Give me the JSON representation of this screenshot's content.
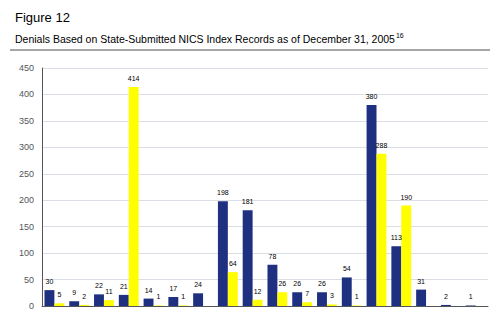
{
  "chart_data": {
    "type": "bar",
    "title": "Figure 12",
    "subtitle": "Denials Based on State-Submitted NICS Index Records as of December 31, 2005",
    "annotations": [
      "16"
    ],
    "categories": [
      null,
      null,
      null,
      null,
      null,
      null,
      null,
      null,
      null,
      null,
      null,
      null,
      null,
      null,
      null,
      null,
      null,
      null
    ],
    "series": [
      {
        "color": "#1F3080",
        "values": [
          30,
          9,
          22,
          21,
          14,
          17,
          24,
          198,
          181,
          78,
          26,
          26,
          54,
          380,
          113,
          31,
          2,
          1
        ]
      },
      {
        "color": "#FFFF00",
        "values": [
          5,
          2,
          11,
          414,
          1,
          1,
          0,
          64,
          12,
          26,
          7,
          3,
          1,
          288,
          190,
          0,
          0,
          0
        ],
        "value_labels": [
          "5",
          "2",
          "11",
          "414",
          "1",
          "1",
          null,
          "64",
          "12",
          "26",
          "7",
          "3",
          "1",
          "288",
          "190",
          null,
          null,
          null
        ]
      }
    ],
    "ylim": [
      0,
      450
    ],
    "yticks": [
      0,
      50,
      100,
      150,
      200,
      250,
      300,
      350,
      400,
      450
    ],
    "grid": true,
    "data_labels": true,
    "tick_labels": "y"
  }
}
